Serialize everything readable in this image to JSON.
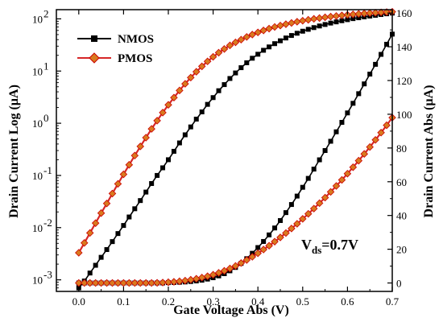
{
  "chart_data": {
    "type": "line",
    "title": "",
    "xlabel": "Gate Voltage Abs (V)",
    "ylabel_left": "Drain Current Log (µA)",
    "ylabel_right": "Drain Current Abs (µA)",
    "xlim": [
      -0.05,
      0.7
    ],
    "ylim_left_log": [
      0.0006,
      150
    ],
    "ylim_right": [
      -5,
      162
    ],
    "x_ticks": [
      "0.0",
      "0.1",
      "0.2",
      "0.3",
      "0.4",
      "0.5",
      "0.6",
      "0.7"
    ],
    "x_tick_values": [
      0,
      0.1,
      0.2,
      0.3,
      0.4,
      0.5,
      0.6,
      0.7
    ],
    "y_left_tick_values": [
      0.001,
      0.01,
      0.1,
      1,
      10,
      100
    ],
    "y_left_ticks": [
      "10",
      "10",
      "10",
      "10",
      "10",
      "10"
    ],
    "y_left_tick_exponents": [
      "-3",
      "-2",
      "-1",
      "0",
      "1",
      "2"
    ],
    "y_right_tick_values": [
      0,
      20,
      40,
      60,
      80,
      100,
      120,
      140,
      160
    ],
    "y_right_ticks": [
      "0",
      "20",
      "40",
      "60",
      "80",
      "100",
      "120",
      "140",
      "160"
    ],
    "legend": {
      "placement": "top-left",
      "entries": [
        "NMOS",
        "PMOS"
      ]
    },
    "annotation": {
      "base": "V",
      "sub": "ds",
      "rest": "=0.7V"
    },
    "colors": {
      "NMOS": "#000000",
      "PMOS": "#d62728",
      "PMOS_marker_edge": "#cc0000",
      "PMOS_marker_fill": "#d97a1f"
    },
    "x": [
      0,
      0.0125,
      0.025,
      0.0375,
      0.05,
      0.0625,
      0.075,
      0.0875,
      0.1,
      0.1125,
      0.125,
      0.1375,
      0.15,
      0.1625,
      0.175,
      0.1875,
      0.2,
      0.2125,
      0.225,
      0.2375,
      0.25,
      0.2625,
      0.275,
      0.2875,
      0.3,
      0.3125,
      0.325,
      0.3375,
      0.35,
      0.3625,
      0.375,
      0.3875,
      0.4,
      0.4125,
      0.425,
      0.4375,
      0.45,
      0.4625,
      0.475,
      0.4875,
      0.5,
      0.5125,
      0.525,
      0.5375,
      0.55,
      0.5625,
      0.575,
      0.5875,
      0.6,
      0.6125,
      0.625,
      0.6375,
      0.65,
      0.6625,
      0.675,
      0.6875,
      0.7
    ],
    "series": [
      {
        "name": "NMOS",
        "axis": "log",
        "values": [
          0.0007,
          0.00095,
          0.00135,
          0.0019,
          0.0027,
          0.0038,
          0.0054,
          0.0077,
          0.011,
          0.016,
          0.023,
          0.033,
          0.048,
          0.07,
          0.1,
          0.14,
          0.2,
          0.29,
          0.42,
          0.6,
          0.85,
          1.2,
          1.65,
          2.3,
          3.1,
          4.2,
          5.5,
          7.2,
          9.2,
          11.6,
          14.4,
          17.6,
          21,
          25,
          29,
          33.5,
          38,
          43,
          48,
          53,
          58,
          63,
          68,
          73,
          78,
          83,
          87.5,
          92,
          96.5,
          101,
          105,
          109,
          113,
          117,
          121,
          125,
          129
        ]
      },
      {
        "name": "PMOS",
        "axis": "log",
        "values": [
          0.0033,
          0.0051,
          0.0079,
          0.0122,
          0.019,
          0.029,
          0.045,
          0.069,
          0.105,
          0.16,
          0.24,
          0.36,
          0.53,
          0.78,
          1.12,
          1.6,
          2.25,
          3.1,
          4.25,
          5.7,
          7.5,
          9.7,
          12.3,
          15.3,
          18.7,
          22.5,
          26.5,
          31,
          35.5,
          40,
          45,
          50,
          55,
          60,
          65,
          70,
          74.5,
          79,
          83.5,
          88,
          92,
          96,
          100,
          103.5,
          107,
          110.5,
          113.5,
          116.5,
          119.5,
          122,
          124.5,
          127,
          129,
          131,
          133,
          135,
          136.5
        ]
      },
      {
        "name": "NMOS",
        "axis": "linear",
        "values": [
          0,
          0,
          0,
          0,
          0,
          0,
          0,
          0,
          0,
          0,
          0,
          0,
          0,
          0,
          0,
          0,
          0.2,
          0.29,
          0.42,
          0.6,
          0.85,
          1.2,
          1.65,
          2.3,
          3.1,
          4.2,
          5.5,
          7.2,
          9.2,
          11.6,
          14.4,
          17.6,
          21,
          24.6,
          28.5,
          32.6,
          37,
          41.7,
          46.5,
          51.5,
          56.7,
          62,
          67.5,
          73,
          78.5,
          84,
          89.6,
          95.2,
          100.8,
          106.5,
          112.2,
          118,
          123.8,
          129.6,
          135.5,
          141.5,
          147.5
        ]
      },
      {
        "name": "PMOS",
        "axis": "linear",
        "values": [
          0,
          0,
          0,
          0,
          0,
          0,
          0,
          0,
          0,
          0,
          0,
          0,
          0,
          0,
          0.1,
          0.25,
          0.45,
          0.7,
          1,
          1.4,
          1.9,
          2.5,
          3.2,
          4,
          4.9,
          6,
          7.2,
          8.6,
          10.1,
          11.8,
          13.6,
          15.5,
          17.6,
          19.8,
          22.1,
          24.5,
          27,
          29.6,
          32.3,
          35.1,
          38,
          41,
          44.1,
          47.3,
          50.6,
          54,
          57.5,
          61.1,
          64.8,
          68.6,
          72.5,
          76.5,
          80.6,
          84.8,
          89.1,
          93.5,
          98
        ]
      }
    ]
  }
}
